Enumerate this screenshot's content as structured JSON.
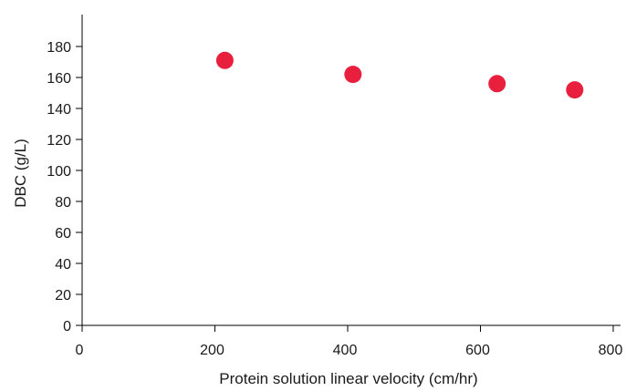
{
  "chart_data": {
    "type": "scatter",
    "xlabel": "Protein solution linear velocity (cm/hr)",
    "ylabel": "DBC (g/L)",
    "xlim": [
      0,
      800
    ],
    "ylim": [
      0,
      180
    ],
    "xticks": [
      0,
      200,
      400,
      600,
      800
    ],
    "yticks": [
      0,
      20,
      40,
      60,
      80,
      100,
      120,
      140,
      160,
      180
    ],
    "grid": false,
    "series": [
      {
        "x": [
          215,
          408,
          625,
          742
        ],
        "y": [
          171,
          162,
          156,
          152
        ],
        "color": "#e8203e"
      }
    ]
  }
}
